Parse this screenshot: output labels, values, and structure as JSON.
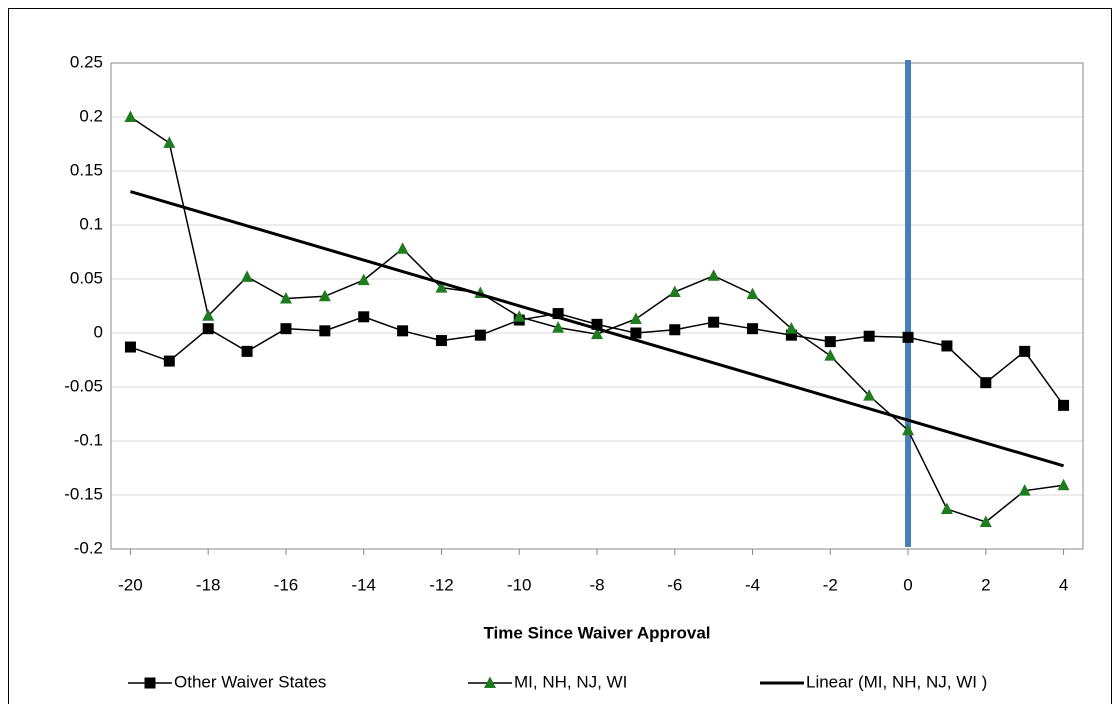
{
  "chart_data": {
    "type": "line",
    "x_label": "Time Since Waiver Approval",
    "x": [
      -20,
      -19,
      -18,
      -17,
      -16,
      -15,
      -14,
      -13,
      -12,
      -11,
      -10,
      -9,
      -8,
      -7,
      -6,
      -5,
      -4,
      -3,
      -2,
      -1,
      0,
      1,
      2,
      3,
      4
    ],
    "xlim": [
      -20.5,
      4.5
    ],
    "xticks": [
      -20,
      -18,
      -16,
      -14,
      -12,
      -10,
      -8,
      -6,
      -4,
      -2,
      0,
      2,
      4
    ],
    "ylim": [
      -0.2,
      0.25
    ],
    "yticks": [
      -0.2,
      -0.15,
      -0.1,
      -0.05,
      0,
      0.05,
      0.1,
      0.15,
      0.2,
      0.25
    ],
    "grid": true,
    "legend": "bottom",
    "series": [
      {
        "name": "Other Waiver States",
        "color": "#000000",
        "marker": "square",
        "values": [
          -0.013,
          -0.026,
          0.004,
          -0.017,
          0.004,
          0.002,
          0.015,
          0.002,
          -0.007,
          -0.002,
          0.012,
          0.018,
          0.008,
          0,
          0.003,
          0.01,
          0.004,
          -0.002,
          -0.008,
          -0.003,
          -0.004,
          -0.012,
          -0.046,
          -0.017,
          -0.067
        ]
      },
      {
        "name": "MI, NH, NJ, WI",
        "color": "#1e7b1e",
        "marker": "triangle",
        "values": [
          0.2,
          0.176,
          0.016,
          0.052,
          0.032,
          0.034,
          0.049,
          0.078,
          0.042,
          0.037,
          0.015,
          0.005,
          -0.001,
          0.013,
          0.038,
          0.053,
          0.036,
          0.004,
          -0.021,
          -0.058,
          -0.09,
          -0.163,
          -0.175,
          -0.146,
          -0.141
        ]
      },
      {
        "name": "Linear (MI, NH, NJ, WI )",
        "color": "#000000",
        "marker": "none",
        "x": [
          -20,
          4
        ],
        "values": [
          0.131,
          -0.123
        ]
      }
    ],
    "vline": {
      "x": 0,
      "color": "#4a7ebb"
    }
  }
}
